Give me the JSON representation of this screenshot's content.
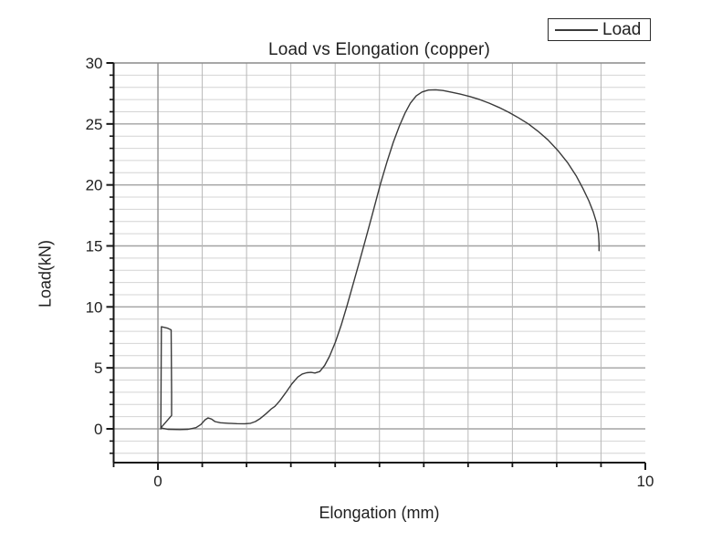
{
  "chart_data": {
    "type": "line",
    "title": "Load vs Elongation (copper)",
    "xlabel": "Elongation (mm)",
    "ylabel": "Load(kN)",
    "legend": {
      "position": "top-right",
      "entries": [
        {
          "label": "Load",
          "color": "#3a3a3a"
        }
      ]
    },
    "x_axis": {
      "min": -0.9091,
      "max": 10,
      "major_ticks": [
        0,
        10
      ],
      "major_tick_labels": [
        "0",
        "10"
      ],
      "minor_divisions_per_major": 11
    },
    "y_axis": {
      "min": -2.768,
      "max": 30,
      "major_ticks": [
        0,
        5,
        10,
        15,
        20,
        25,
        30
      ],
      "major_tick_labels": [
        "0",
        "5",
        "10",
        "15",
        "20",
        "25",
        "30"
      ],
      "minor_tick_step": 1
    },
    "grid": {
      "horizontal_minor": true,
      "horizontal_major": true,
      "vertical_minor": true
    },
    "style": {
      "curve_color": "#3a3a3a",
      "axis_color": "#161616",
      "grid_minor_color": "#d4d4d4",
      "grid_major_color": "#a3a3a3",
      "grid_vertical_color": "#b8b8b8",
      "grid_vertical_major_color": "#8f8f8f",
      "frame_top_color": "#8a8a8a",
      "text_color": "#1f1f1f",
      "background": "#ffffff"
    },
    "series": [
      {
        "name": "Load",
        "color": "#3a3a3a",
        "points": [
          [
            0.06,
            0.0
          ],
          [
            0.07,
            8.37
          ],
          [
            0.2,
            8.25
          ],
          [
            0.27,
            8.12
          ],
          [
            0.28,
            3.0
          ],
          [
            0.28,
            1.1
          ],
          [
            0.06,
            0.08
          ],
          [
            0.2,
            -0.04
          ],
          [
            0.45,
            -0.06
          ],
          [
            0.62,
            -0.04
          ],
          [
            0.78,
            0.1
          ],
          [
            0.88,
            0.35
          ],
          [
            0.97,
            0.75
          ],
          [
            1.03,
            0.9
          ],
          [
            1.1,
            0.8
          ],
          [
            1.17,
            0.6
          ],
          [
            1.28,
            0.5
          ],
          [
            1.45,
            0.46
          ],
          [
            1.62,
            0.43
          ],
          [
            1.78,
            0.42
          ],
          [
            1.9,
            0.46
          ],
          [
            2.0,
            0.6
          ],
          [
            2.1,
            0.85
          ],
          [
            2.22,
            1.25
          ],
          [
            2.33,
            1.65
          ],
          [
            2.4,
            1.85
          ],
          [
            2.5,
            2.3
          ],
          [
            2.62,
            2.95
          ],
          [
            2.75,
            3.7
          ],
          [
            2.87,
            4.25
          ],
          [
            2.96,
            4.5
          ],
          [
            3.05,
            4.6
          ],
          [
            3.14,
            4.63
          ],
          [
            3.22,
            4.58
          ],
          [
            3.32,
            4.7
          ],
          [
            3.42,
            5.2
          ],
          [
            3.52,
            5.95
          ],
          [
            3.64,
            7.1
          ],
          [
            3.76,
            8.5
          ],
          [
            3.88,
            10.1
          ],
          [
            4.0,
            11.8
          ],
          [
            4.12,
            13.5
          ],
          [
            4.25,
            15.4
          ],
          [
            4.4,
            17.6
          ],
          [
            4.56,
            20.0
          ],
          [
            4.7,
            21.9
          ],
          [
            4.83,
            23.5
          ],
          [
            4.95,
            24.8
          ],
          [
            5.07,
            25.9
          ],
          [
            5.18,
            26.7
          ],
          [
            5.3,
            27.3
          ],
          [
            5.42,
            27.62
          ],
          [
            5.55,
            27.78
          ],
          [
            5.7,
            27.8
          ],
          [
            5.85,
            27.74
          ],
          [
            6.0,
            27.62
          ],
          [
            6.2,
            27.45
          ],
          [
            6.4,
            27.25
          ],
          [
            6.6,
            27.0
          ],
          [
            6.8,
            26.7
          ],
          [
            7.0,
            26.35
          ],
          [
            7.2,
            25.95
          ],
          [
            7.4,
            25.5
          ],
          [
            7.6,
            25.0
          ],
          [
            7.8,
            24.4
          ],
          [
            8.0,
            23.7
          ],
          [
            8.2,
            22.85
          ],
          [
            8.4,
            21.85
          ],
          [
            8.58,
            20.75
          ],
          [
            8.72,
            19.7
          ],
          [
            8.84,
            18.7
          ],
          [
            8.93,
            17.8
          ],
          [
            9.0,
            16.9
          ],
          [
            9.04,
            16.0
          ],
          [
            9.05,
            15.2
          ],
          [
            9.05,
            14.6
          ]
        ]
      }
    ]
  }
}
